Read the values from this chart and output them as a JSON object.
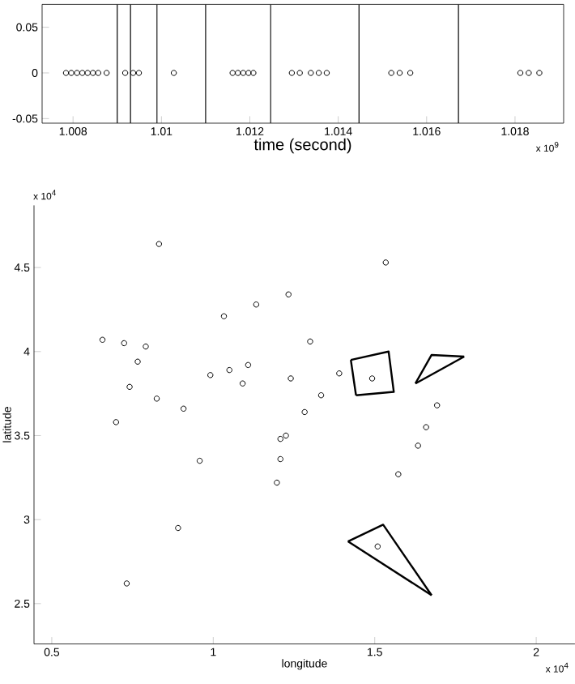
{
  "chart_data": [
    {
      "type": "scatter",
      "xlabel": "time (second)",
      "xlim": [
        1.0073,
        1.0191
      ],
      "ylim": [
        -0.055,
        0.075
      ],
      "xticks": [
        1.008,
        1.01,
        1.012,
        1.014,
        1.016,
        1.018
      ],
      "yticks": [
        -0.05,
        0,
        0.05
      ],
      "marker": "circle",
      "grid": false,
      "annotations": [
        "x 10$^{9}$"
      ],
      "series": [
        {
          "color": "#000000",
          "x": [
            1.00784,
            1.00796,
            1.00809,
            1.00821,
            1.00833,
            1.00845,
            1.00857,
            1.00876,
            1.00918,
            1.00936,
            1.00949,
            1.01028,
            1.01161,
            1.01173,
            1.01185,
            1.01197,
            1.01208,
            1.01295,
            1.01313,
            1.01338,
            1.01356,
            1.01374,
            1.0152,
            1.01539,
            1.01563,
            1.01812,
            1.01831,
            1.01855
          ],
          "values": [
            0,
            0,
            0,
            0,
            0,
            0,
            0,
            0,
            0,
            0,
            0,
            0,
            0,
            0,
            0,
            0,
            0,
            0,
            0,
            0,
            0,
            0,
            0,
            0,
            0,
            0,
            0,
            0
          ]
        }
      ],
      "ref_lines": [
        {
          "axis": "x",
          "value": 1.009,
          "color": "#000000"
        },
        {
          "axis": "x",
          "value": 1.0093,
          "color": "#000000"
        },
        {
          "axis": "x",
          "value": 1.0099,
          "color": "#000000"
        },
        {
          "axis": "x",
          "value": 1.011,
          "color": "#000000"
        },
        {
          "axis": "x",
          "value": 1.01247,
          "color": "#000000"
        },
        {
          "axis": "x",
          "value": 1.01447,
          "color": "#000000"
        },
        {
          "axis": "x",
          "value": 1.01672,
          "color": "#000000"
        }
      ]
    },
    {
      "type": "scatter",
      "xlabel": "longitude",
      "ylabel": "latitude",
      "xlim": [
        0.445,
        2.12
      ],
      "ylim": [
        2.26,
        4.87
      ],
      "xticks": [
        0.5,
        1,
        1.5,
        2
      ],
      "yticks": [
        2.5,
        3,
        3.5,
        4,
        4.5
      ],
      "marker": "circle",
      "grid": false,
      "annotations": [
        "x 10$^{4}$",
        "x 10$^{4}$"
      ],
      "series": [
        {
          "color": "#000000",
          "x": [
            0.832,
            1.033,
            1.133,
            1.233,
            0.657,
            0.724,
            0.791,
            0.766,
            0.741,
            0.825,
            0.908,
            0.699,
            0.991,
            1.05,
            1.108,
            1.091,
            1.24,
            1.39,
            1.534,
            1.3,
            1.492,
            1.334,
            1.283,
            1.225,
            1.693,
            1.659,
            1.634,
            0.958,
            1.208,
            1.208,
            1.197,
            1.573,
            0.891,
            0.732,
            1.509
          ],
          "values": [
            4.64,
            4.21,
            4.28,
            4.34,
            4.07,
            4.05,
            4.03,
            3.94,
            3.79,
            3.72,
            3.66,
            3.58,
            3.86,
            3.89,
            3.92,
            3.81,
            3.84,
            3.87,
            4.53,
            4.06,
            3.84,
            3.74,
            3.64,
            3.5,
            3.68,
            3.55,
            3.44,
            3.35,
            3.48,
            3.36,
            3.22,
            3.27,
            2.95,
            2.62,
            2.84
          ]
        },
        {
          "type": "line",
          "marker": "none",
          "color": "#000000",
          "x": [
            1.426,
            1.543,
            1.559,
            1.442
          ],
          "values": [
            3.95,
            4.0,
            3.76,
            3.74
          ]
        },
        {
          "type": "line",
          "marker": "none",
          "color": "#000000",
          "x": [
            1.442,
            1.426
          ],
          "values": [
            3.74,
            3.95
          ]
        },
        {
          "type": "line",
          "marker": "none",
          "color": "#000000",
          "x": [
            1.626,
            1.676,
            1.777
          ],
          "values": [
            3.81,
            3.98,
            3.97
          ]
        },
        {
          "type": "line",
          "marker": "none",
          "color": "#000000",
          "x": [
            1.777,
            1.626
          ],
          "values": [
            3.97,
            3.81
          ]
        },
        {
          "type": "line",
          "marker": "none",
          "color": "#000000",
          "x": [
            1.417,
            1.526,
            1.676
          ],
          "values": [
            2.87,
            2.97,
            2.55
          ]
        },
        {
          "type": "line",
          "marker": "none",
          "color": "#000000",
          "x": [
            1.676,
            1.417
          ],
          "values": [
            2.55,
            2.87
          ]
        }
      ]
    }
  ]
}
